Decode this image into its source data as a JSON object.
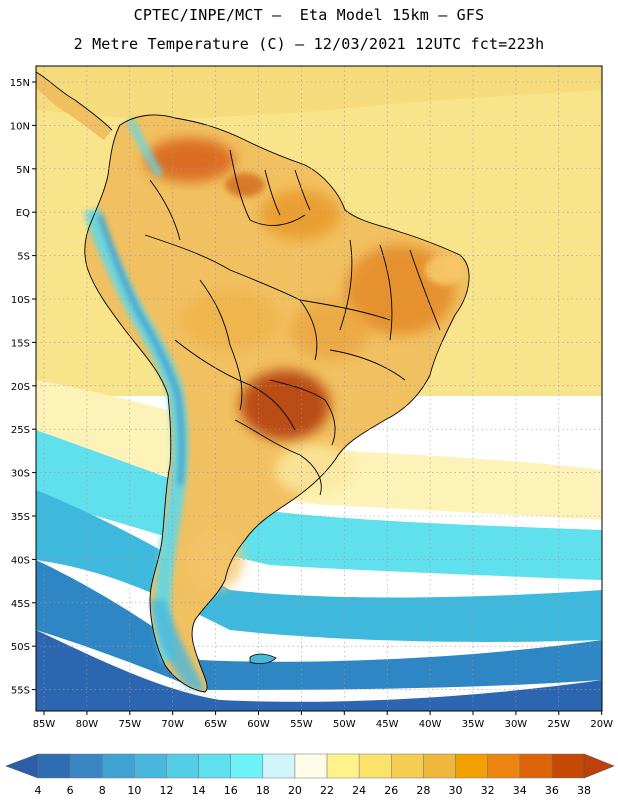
{
  "title": {
    "line1": "CPTEC/INPE/MCT –  Eta Model 15km – GFS",
    "line2": "2 Metre Temperature (C) – 12/03/2021 12UTC fct=223h"
  },
  "map": {
    "lat_labels": [
      "15N",
      "10N",
      "5N",
      "EQ",
      "5S",
      "10S",
      "15S",
      "20S",
      "25S",
      "30S",
      "35S",
      "40S",
      "45S",
      "50S",
      "55S"
    ],
    "lon_labels": [
      "85W",
      "80W",
      "75W",
      "70W",
      "65W",
      "60W",
      "55W",
      "50W",
      "45W",
      "40W",
      "35W",
      "30W",
      "25W",
      "20W"
    ],
    "ocean_bands": [
      {
        "name": "tropical",
        "color": "#f8e48a"
      },
      {
        "name": "subtropical-pale",
        "color": "#fdf3b8"
      },
      {
        "name": "mid-cyan",
        "color": "#5fe0ec"
      },
      {
        "name": "cool-blue",
        "color": "#3eb8dc"
      },
      {
        "name": "cold-blue",
        "color": "#2f86c4"
      },
      {
        "name": "deep-blue",
        "color": "#2d66b0"
      }
    ]
  },
  "legend": {
    "values": [
      "4",
      "6",
      "8",
      "10",
      "12",
      "14",
      "16",
      "18",
      "20",
      "22",
      "24",
      "26",
      "28",
      "30",
      "32",
      "34",
      "36",
      "38"
    ],
    "low_arrow_color": "#2a5ea8",
    "high_arrow_color": "#c0400a",
    "colors": [
      "#2f6db3",
      "#3a86c2",
      "#40a2d0",
      "#49b8dc",
      "#54cde6",
      "#5ee0ee",
      "#6cf2f7",
      "#d0f6fa",
      "#fffbe6",
      "#fff28a",
      "#fbe26a",
      "#f5cd52",
      "#efb83c",
      "#f2a000",
      "#ec8410",
      "#de640a",
      "#c64805"
    ]
  }
}
